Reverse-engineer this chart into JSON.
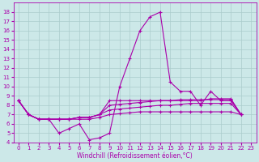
{
  "xlabel": "Windchill (Refroidissement éolien,°C)",
  "xlim": [
    -0.5,
    23.5
  ],
  "ylim": [
    4,
    19
  ],
  "yticks": [
    4,
    5,
    6,
    7,
    8,
    9,
    10,
    11,
    12,
    13,
    14,
    15,
    16,
    17,
    18
  ],
  "xticks": [
    0,
    1,
    2,
    3,
    4,
    5,
    6,
    7,
    8,
    9,
    10,
    11,
    12,
    13,
    14,
    15,
    16,
    17,
    18,
    19,
    20,
    21,
    22,
    23
  ],
  "bg_color": "#cce8e8",
  "grid_color": "#aacccc",
  "line_color": "#aa00aa",
  "spike_line": [
    8.5,
    7.0,
    6.5,
    6.5,
    5.0,
    5.5,
    6.0,
    4.3,
    4.5,
    5.0,
    10.0,
    13.0,
    16.0,
    17.5,
    18.0,
    10.5,
    9.5,
    9.5,
    8.0,
    9.5,
    8.5,
    8.5,
    7.0
  ],
  "flat_lines": [
    [
      8.5,
      7.0,
      6.5,
      6.5,
      6.5,
      6.5,
      6.7,
      6.7,
      7.0,
      8.5,
      8.5,
      8.5,
      8.5,
      8.5,
      8.5,
      8.5,
      8.5,
      8.5,
      8.5,
      8.7,
      8.7,
      8.7,
      7.0
    ],
    [
      8.5,
      7.0,
      6.5,
      6.5,
      6.5,
      6.5,
      6.7,
      6.7,
      7.0,
      8.0,
      8.1,
      8.2,
      8.3,
      8.4,
      8.5,
      8.5,
      8.6,
      8.6,
      8.6,
      8.6,
      8.6,
      8.6,
      7.0
    ],
    [
      8.5,
      7.0,
      6.5,
      6.5,
      6.5,
      6.5,
      6.7,
      6.7,
      7.0,
      7.5,
      7.6,
      7.7,
      7.8,
      7.9,
      8.0,
      8.0,
      8.1,
      8.2,
      8.2,
      8.2,
      8.2,
      8.2,
      7.0
    ],
    [
      8.5,
      7.0,
      6.5,
      6.5,
      6.5,
      6.5,
      6.5,
      6.5,
      6.7,
      7.0,
      7.1,
      7.2,
      7.3,
      7.3,
      7.3,
      7.3,
      7.3,
      7.3,
      7.3,
      7.3,
      7.3,
      7.3,
      7.0
    ]
  ]
}
